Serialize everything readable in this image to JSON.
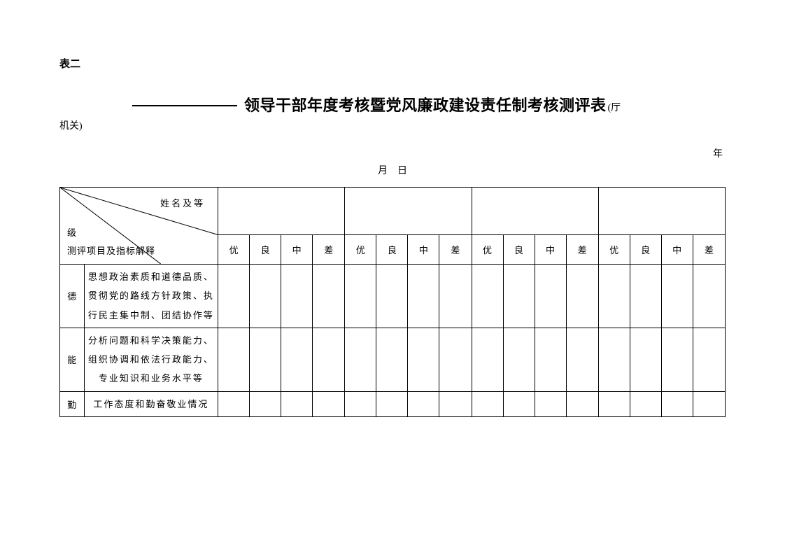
{
  "header": {
    "table_label": "表二",
    "title": "领导干部年度考核暨党风廉政建设责任制考核测评表",
    "suffix": "(厅",
    "org": "机关)",
    "date_year": "年",
    "date_md": "月日"
  },
  "diag": {
    "top": "姓名及等",
    "mid": "级",
    "bottom": "测评项目及指标解释"
  },
  "ratings": [
    "优",
    "良",
    "中",
    "差"
  ],
  "rows": [
    {
      "cat": "德",
      "desc": "思想政治素质和道德品质、贯彻党的路线方针政策、执行民主集中制、团结协作等"
    },
    {
      "cat": "能",
      "desc": "分析问题和科学决策能力、组织协调和依法行政能力、专业知识和业务水平等"
    },
    {
      "cat": "勤",
      "desc": "工作态度和勤奋敬业情况"
    }
  ],
  "groups": 4,
  "style": {
    "background": "#ffffff",
    "text_color": "#000000",
    "border_color": "#000000",
    "font_family": "SimSun",
    "title_fontsize": 22,
    "body_fontsize": 14,
    "table_fontsize": 13,
    "line_height_desc": 2.1
  }
}
